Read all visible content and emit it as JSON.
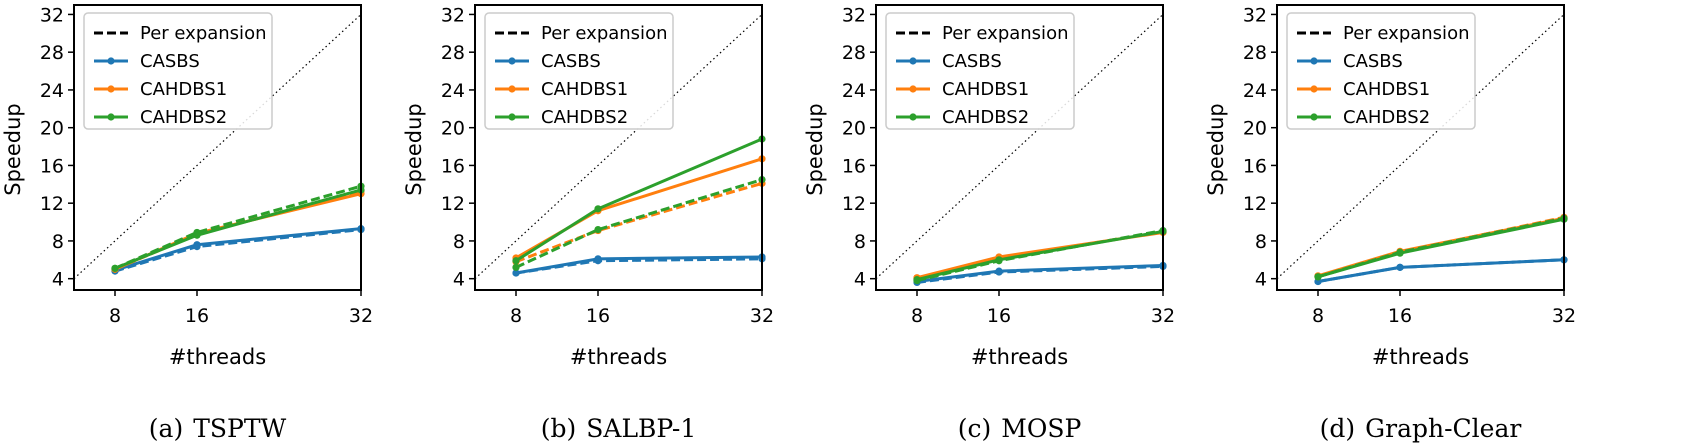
{
  "chart_data": [
    {
      "type": "line",
      "caption_label": "(a)",
      "caption_title": "TSPTW",
      "xlabel": "#threads",
      "ylabel": "Speedup",
      "x": [
        8,
        16,
        32
      ],
      "xticks": [
        "8",
        "16",
        "32"
      ],
      "yticks": [
        "4",
        "8",
        "12",
        "16",
        "20",
        "24",
        "28",
        "32"
      ],
      "xlim": [
        4,
        32
      ],
      "ylim": [
        2.8,
        33
      ],
      "ideal_line": true,
      "series": [
        {
          "name": "CASBS",
          "color": "#1f77b4",
          "style": "solid",
          "values": [
            4.9,
            7.6,
            9.3
          ]
        },
        {
          "name": "CASBS",
          "color": "#1f77b4",
          "style": "dashed",
          "values": [
            4.8,
            7.4,
            9.2
          ]
        },
        {
          "name": "CAHDBS1",
          "color": "#ff7f0e",
          "style": "solid",
          "values": [
            5.0,
            8.8,
            13.0
          ]
        },
        {
          "name": "CAHDBS1",
          "color": "#ff7f0e",
          "style": "dashed",
          "values": [
            5.0,
            8.7,
            13.3
          ]
        },
        {
          "name": "CAHDBS2",
          "color": "#2ca02c",
          "style": "solid",
          "values": [
            5.1,
            8.6,
            13.4
          ]
        },
        {
          "name": "CAHDBS2",
          "color": "#2ca02c",
          "style": "dashed",
          "values": [
            5.1,
            8.9,
            13.8
          ]
        }
      ]
    },
    {
      "type": "line",
      "caption_label": "(b)",
      "caption_title": "SALBP-1",
      "xlabel": "#threads",
      "ylabel": "Speedup",
      "x": [
        8,
        16,
        32
      ],
      "xticks": [
        "8",
        "16",
        "32"
      ],
      "yticks": [
        "4",
        "8",
        "12",
        "16",
        "20",
        "24",
        "28",
        "32"
      ],
      "xlim": [
        4,
        32
      ],
      "ylim": [
        2.8,
        33
      ],
      "ideal_line": true,
      "series": [
        {
          "name": "CASBS",
          "color": "#1f77b4",
          "style": "solid",
          "values": [
            4.6,
            6.1,
            6.3
          ]
        },
        {
          "name": "CASBS",
          "color": "#1f77b4",
          "style": "dashed",
          "values": [
            4.6,
            5.9,
            6.1
          ]
        },
        {
          "name": "CAHDBS1",
          "color": "#ff7f0e",
          "style": "solid",
          "values": [
            6.2,
            11.2,
            16.7
          ]
        },
        {
          "name": "CAHDBS1",
          "color": "#ff7f0e",
          "style": "dashed",
          "values": [
            5.8,
            9.1,
            14.1
          ]
        },
        {
          "name": "CAHDBS2",
          "color": "#2ca02c",
          "style": "solid",
          "values": [
            5.9,
            11.4,
            18.8
          ]
        },
        {
          "name": "CAHDBS2",
          "color": "#2ca02c",
          "style": "dashed",
          "values": [
            5.2,
            9.2,
            14.5
          ]
        }
      ]
    },
    {
      "type": "line",
      "caption_label": "(c)",
      "caption_title": "MOSP",
      "xlabel": "#threads",
      "ylabel": "Speedup",
      "x": [
        8,
        16,
        32
      ],
      "xticks": [
        "8",
        "16",
        "32"
      ],
      "yticks": [
        "4",
        "8",
        "12",
        "16",
        "20",
        "24",
        "28",
        "32"
      ],
      "xlim": [
        4,
        32
      ],
      "ylim": [
        2.8,
        33
      ],
      "ideal_line": true,
      "series": [
        {
          "name": "CASBS",
          "color": "#1f77b4",
          "style": "solid",
          "values": [
            3.7,
            4.8,
            5.4
          ]
        },
        {
          "name": "CASBS",
          "color": "#1f77b4",
          "style": "dashed",
          "values": [
            3.6,
            4.7,
            5.3
          ]
        },
        {
          "name": "CAHDBS1",
          "color": "#ff7f0e",
          "style": "solid",
          "values": [
            4.1,
            6.3,
            8.9
          ]
        },
        {
          "name": "CAHDBS1",
          "color": "#ff7f0e",
          "style": "dashed",
          "values": [
            4.0,
            6.1,
            9.0
          ]
        },
        {
          "name": "CAHDBS2",
          "color": "#2ca02c",
          "style": "solid",
          "values": [
            3.9,
            6.0,
            9.0
          ]
        },
        {
          "name": "CAHDBS2",
          "color": "#2ca02c",
          "style": "dashed",
          "values": [
            3.8,
            5.9,
            9.1
          ]
        }
      ]
    },
    {
      "type": "line",
      "caption_label": "(d)",
      "caption_title": "Graph-Clear",
      "xlabel": "#threads",
      "ylabel": "Speedup",
      "x": [
        8,
        16,
        32
      ],
      "xticks": [
        "8",
        "16",
        "32"
      ],
      "yticks": [
        "4",
        "8",
        "12",
        "16",
        "20",
        "24",
        "28",
        "32"
      ],
      "xlim": [
        4,
        32
      ],
      "ylim": [
        2.8,
        33
      ],
      "ideal_line": true,
      "series": [
        {
          "name": "CASBS",
          "color": "#1f77b4",
          "style": "solid",
          "values": [
            3.7,
            5.2,
            6.0
          ]
        },
        {
          "name": "CASBS",
          "color": "#1f77b4",
          "style": "dashed",
          "values": [
            3.7,
            5.2,
            6.0
          ]
        },
        {
          "name": "CAHDBS1",
          "color": "#ff7f0e",
          "style": "solid",
          "values": [
            4.3,
            6.9,
            10.4
          ]
        },
        {
          "name": "CAHDBS1",
          "color": "#ff7f0e",
          "style": "dashed",
          "values": [
            4.2,
            6.8,
            10.5
          ]
        },
        {
          "name": "CAHDBS2",
          "color": "#2ca02c",
          "style": "solid",
          "values": [
            4.2,
            6.7,
            10.3
          ]
        },
        {
          "name": "CAHDBS2",
          "color": "#2ca02c",
          "style": "dashed",
          "values": [
            4.2,
            6.8,
            10.4
          ]
        }
      ]
    }
  ],
  "legend": {
    "entries": [
      {
        "label": "Per expansion",
        "color": "#000000",
        "style": "dashed",
        "marker": false
      },
      {
        "label": "CASBS",
        "color": "#1f77b4",
        "style": "solid",
        "marker": true
      },
      {
        "label": "CAHDBS1",
        "color": "#ff7f0e",
        "style": "solid",
        "marker": true
      },
      {
        "label": "CAHDBS2",
        "color": "#2ca02c",
        "style": "solid",
        "marker": true
      }
    ]
  }
}
